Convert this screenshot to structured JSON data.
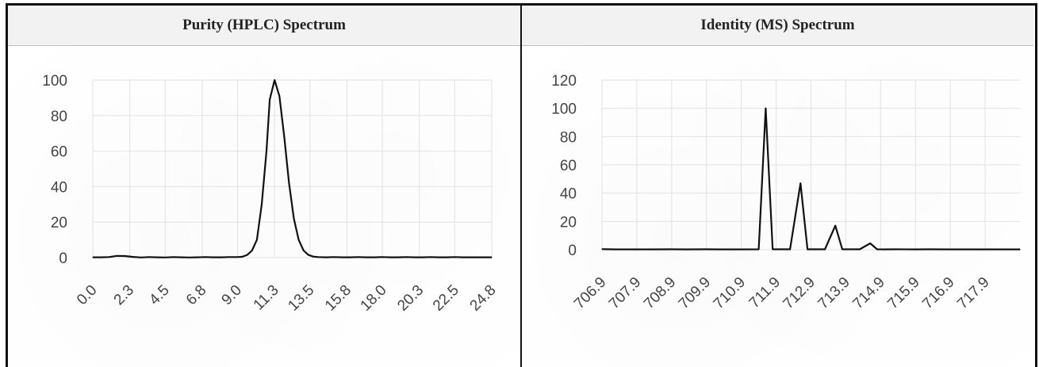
{
  "panels": [
    {
      "title": "Purity (HPLC) Spectrum"
    },
    {
      "title": "Identity (MS) Spectrum"
    }
  ],
  "chart_data": [
    {
      "type": "line",
      "title": "Purity (HPLC) Spectrum",
      "xlabel": "",
      "ylabel": "",
      "grid": true,
      "ylim": [
        0,
        100
      ],
      "yticks": [
        0,
        20,
        40,
        60,
        80,
        100
      ],
      "xlim": [
        0,
        24.8
      ],
      "xticks": [
        0.0,
        2.3,
        4.5,
        6.8,
        9.0,
        11.3,
        13.5,
        15.8,
        18.0,
        20.3,
        22.5,
        24.8
      ],
      "xtick_labels": [
        "0.0",
        "2.3",
        "4.5",
        "6.8",
        "9.0",
        "11.3",
        "13.5",
        "15.8",
        "18.0",
        "20.3",
        "22.5",
        "24.8"
      ],
      "ytick_labels": [
        "0",
        "20",
        "40",
        "60",
        "80",
        "100"
      ],
      "series": [
        {
          "color": "#111111",
          "x": [
            0.0,
            0.5,
            1.0,
            1.5,
            2.0,
            2.5,
            3.0,
            3.5,
            4.0,
            4.5,
            5.0,
            5.5,
            6.0,
            6.5,
            7.0,
            7.5,
            8.0,
            8.5,
            9.0,
            9.3,
            9.6,
            9.9,
            10.2,
            10.5,
            10.8,
            11.0,
            11.3,
            11.6,
            11.9,
            12.2,
            12.5,
            12.8,
            13.1,
            13.4,
            13.7,
            14.0,
            14.5,
            15.0,
            15.5,
            16.0,
            16.5,
            17.0,
            17.5,
            18.0,
            18.5,
            19.0,
            19.5,
            20.0,
            20.5,
            21.0,
            21.5,
            22.0,
            22.5,
            23.0,
            23.5,
            24.0,
            24.8
          ],
          "y": [
            0.2,
            0.2,
            0.3,
            1.0,
            0.9,
            0.4,
            0.1,
            0.3,
            0.2,
            0.1,
            0.3,
            0.2,
            0.1,
            0.2,
            0.3,
            0.2,
            0.2,
            0.3,
            0.3,
            0.5,
            1.5,
            4.0,
            10.0,
            30.0,
            60.0,
            89.0,
            100.0,
            91.0,
            68.0,
            42.0,
            22.0,
            10.0,
            4.0,
            1.5,
            0.6,
            0.3,
            0.2,
            0.3,
            0.2,
            0.2,
            0.3,
            0.2,
            0.2,
            0.3,
            0.2,
            0.2,
            0.3,
            0.2,
            0.2,
            0.3,
            0.2,
            0.2,
            0.3,
            0.2,
            0.2,
            0.2,
            0.2
          ]
        }
      ]
    },
    {
      "type": "line",
      "title": "Identity (MS) Spectrum",
      "xlabel": "",
      "ylabel": "",
      "grid": true,
      "ylim": [
        0,
        120
      ],
      "yticks": [
        0,
        20,
        40,
        60,
        80,
        100,
        120
      ],
      "xlim": [
        706.9,
        718.9
      ],
      "xticks": [
        706.9,
        707.9,
        708.9,
        709.9,
        710.9,
        711.9,
        712.9,
        713.9,
        714.9,
        715.9,
        716.9,
        717.9
      ],
      "xtick_labels": [
        "706.9",
        "707.9",
        "708.9",
        "709.9",
        "710.9",
        "711.9",
        "712.9",
        "713.9",
        "714.9",
        "715.9",
        "716.9",
        "717.9"
      ],
      "ytick_labels": [
        "0",
        "20",
        "40",
        "60",
        "80",
        "100",
        "120"
      ],
      "series": [
        {
          "color": "#111111",
          "x": [
            706.9,
            707.3,
            707.9,
            708.3,
            708.9,
            709.3,
            709.9,
            710.3,
            710.9,
            711.4,
            711.6,
            711.8,
            712.0,
            712.3,
            712.6,
            712.8,
            713.0,
            713.3,
            713.6,
            713.8,
            714.0,
            714.3,
            714.6,
            714.8,
            715.0,
            715.3,
            715.9,
            716.3,
            716.9,
            717.3,
            717.9,
            718.3,
            718.9
          ],
          "y": [
            0.4,
            0.2,
            0.2,
            0.2,
            0.3,
            0.2,
            0.3,
            0.2,
            0.2,
            0.3,
            100.0,
            0.3,
            0.3,
            0.3,
            47.0,
            0.3,
            0.3,
            0.3,
            17.0,
            0.3,
            0.3,
            0.3,
            4.5,
            0.3,
            0.2,
            0.3,
            0.2,
            0.3,
            0.2,
            0.2,
            0.2,
            0.2,
            0.2
          ]
        }
      ]
    }
  ]
}
